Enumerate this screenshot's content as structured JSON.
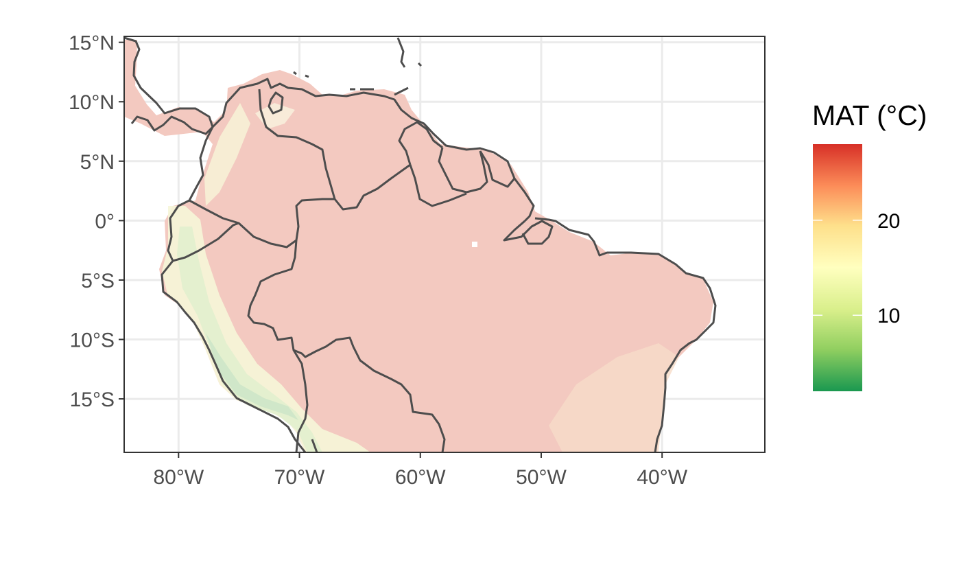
{
  "legend": {
    "title": "MAT (°C)",
    "ticks": [
      {
        "label": "20",
        "value": 20
      },
      {
        "label": "10",
        "value": 10
      }
    ],
    "range": [
      2,
      28
    ],
    "colors": [
      "#1a9850",
      "#91cf60",
      "#d9ef8b",
      "#ffffbf",
      "#fee08b",
      "#fc8d59",
      "#d73027"
    ]
  },
  "map": {
    "lon_range": [
      -84.5,
      -31.5
    ],
    "lat_range": [
      -19.5,
      15.5
    ],
    "x_ticks": [
      {
        "label": "80°W",
        "value": -80
      },
      {
        "label": "70°W",
        "value": -70
      },
      {
        "label": "60°W",
        "value": -60
      },
      {
        "label": "50°W",
        "value": -50
      },
      {
        "label": "40°W",
        "value": -40
      }
    ],
    "y_ticks": [
      {
        "label": "15°N",
        "value": 15
      },
      {
        "label": "10°N",
        "value": 10
      },
      {
        "label": "5°N",
        "value": 5
      },
      {
        "label": "0°",
        "value": 0
      },
      {
        "label": "5°S",
        "value": -5
      },
      {
        "label": "10°S",
        "value": -10
      },
      {
        "label": "15°S",
        "value": -15
      }
    ],
    "grid": true,
    "fill_opacity": 0.3,
    "border_color": "#4d4d4d",
    "panel_border_color": "#333333",
    "grid_color": "#ebebeb"
  }
}
